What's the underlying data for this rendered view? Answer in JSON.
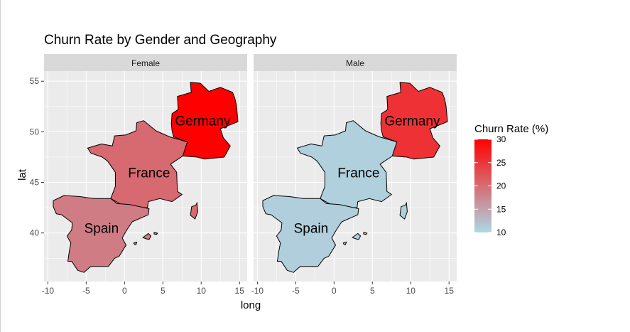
{
  "chart_data": {
    "type": "map",
    "title": "Churn Rate by Gender and Geography",
    "xlabel": "long",
    "ylabel": "lat",
    "xlim": [
      -10.5,
      16
    ],
    "ylim": [
      35.2,
      56
    ],
    "x_ticks": [
      -10,
      -5,
      0,
      5,
      10,
      15
    ],
    "y_ticks": [
      40,
      45,
      50,
      55
    ],
    "facets": [
      {
        "name": "Female",
        "regions": [
          {
            "name": "France",
            "value": 20.3
          },
          {
            "name": "Germany",
            "value": 30.0
          },
          {
            "name": "Spain",
            "value": 18.5
          }
        ]
      },
      {
        "name": "Male",
        "regions": [
          {
            "name": "France",
            "value": 10.7
          },
          {
            "name": "Germany",
            "value": 25.5
          },
          {
            "name": "Spain",
            "value": 10.9
          }
        ]
      }
    ],
    "legend": {
      "title": "Churn Rate (%)",
      "range": [
        10,
        30
      ],
      "ticks": [
        10,
        15,
        20,
        25,
        30
      ],
      "low_color": "#add8e6",
      "high_color": "#ff0000",
      "placement": "right"
    },
    "panel_background": "#ebebeb",
    "strip_background": "#d9d9d9",
    "grid": true
  }
}
